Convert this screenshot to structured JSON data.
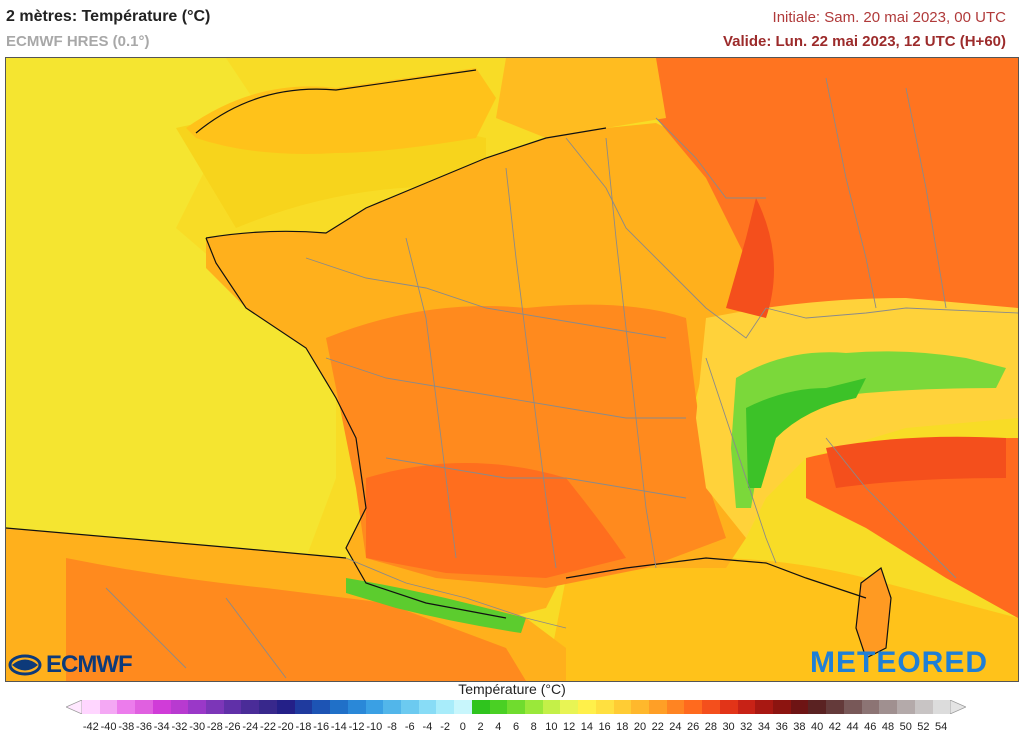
{
  "header": {
    "title": "2 mètres: Température (°C)",
    "model": "ECMWF HRES (0.1°)",
    "init": "Initiale: Sam. 20 mai 2023, 00 UTC",
    "valid": "Valide: Lun. 22 mai 2023, 12 UTC (H+60)"
  },
  "logos": {
    "left": "ECMWF",
    "right": "METEORED"
  },
  "legend": {
    "title": "Température (°C)",
    "ticks": [
      "-42",
      "-40",
      "-38",
      "-36",
      "-34",
      "-32",
      "-30",
      "-28",
      "-26",
      "-24",
      "-22",
      "-20",
      "-18",
      "-16",
      "-14",
      "-12",
      "-10",
      "-8",
      "-6",
      "-4",
      "-2",
      "0",
      "2",
      "4",
      "6",
      "8",
      "10",
      "12",
      "14",
      "16",
      "18",
      "20",
      "22",
      "24",
      "26",
      "28",
      "30",
      "32",
      "34",
      "36",
      "38",
      "40",
      "42",
      "44",
      "46",
      "48",
      "50",
      "52",
      "54"
    ],
    "colors": [
      "#ffd6ff",
      "#f4a8f4",
      "#ec7cec",
      "#e060e0",
      "#d03cd8",
      "#b83ad0",
      "#9a38c8",
      "#7c36b8",
      "#6030a8",
      "#4a2c98",
      "#38288c",
      "#242088",
      "#1f3a9e",
      "#1d54b4",
      "#2070c8",
      "#2a88d8",
      "#3aa0e4",
      "#52b6ea",
      "#6ccaf0",
      "#88dcf6",
      "#a8ecfa",
      "#c8f6fc",
      "#2fc41e",
      "#4ad024",
      "#70dc2e",
      "#9ae83a",
      "#c4f048",
      "#e8f454",
      "#fff04a",
      "#ffe040",
      "#ffcc34",
      "#ffb82c",
      "#ff9f26",
      "#ff8422",
      "#ff6a1e",
      "#f44f1c",
      "#e23418",
      "#c82216",
      "#a81812",
      "#8c1410",
      "#6e1414",
      "#5a2222",
      "#643a3a",
      "#785858",
      "#8c7474",
      "#a09090",
      "#b4aaaa",
      "#c8c4c4",
      "#dcdcdc"
    ]
  }
}
